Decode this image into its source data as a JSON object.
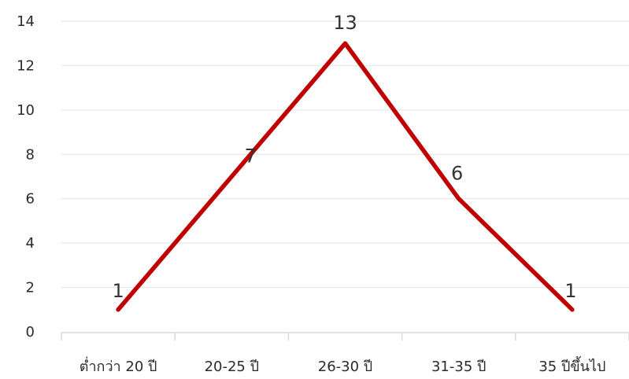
{
  "chart_data": {
    "type": "line",
    "categories": [
      "ต่ำกว่า 20 ปี",
      "20-25 ปี",
      "26-30 ปี",
      "31-35 ปี",
      "35 ปีขึ้นไป"
    ],
    "series": [
      {
        "values": [
          1,
          7,
          13,
          6,
          1
        ],
        "color": "#c00000"
      }
    ],
    "data_labels": [
      "1",
      "7",
      "13",
      "6",
      "1"
    ],
    "ylim": [
      0,
      14
    ],
    "yticks": [
      "0",
      "2",
      "4",
      "6",
      "8",
      "10",
      "12",
      "14"
    ],
    "grid": true,
    "title": "",
    "xlabel": "",
    "ylabel": ""
  }
}
